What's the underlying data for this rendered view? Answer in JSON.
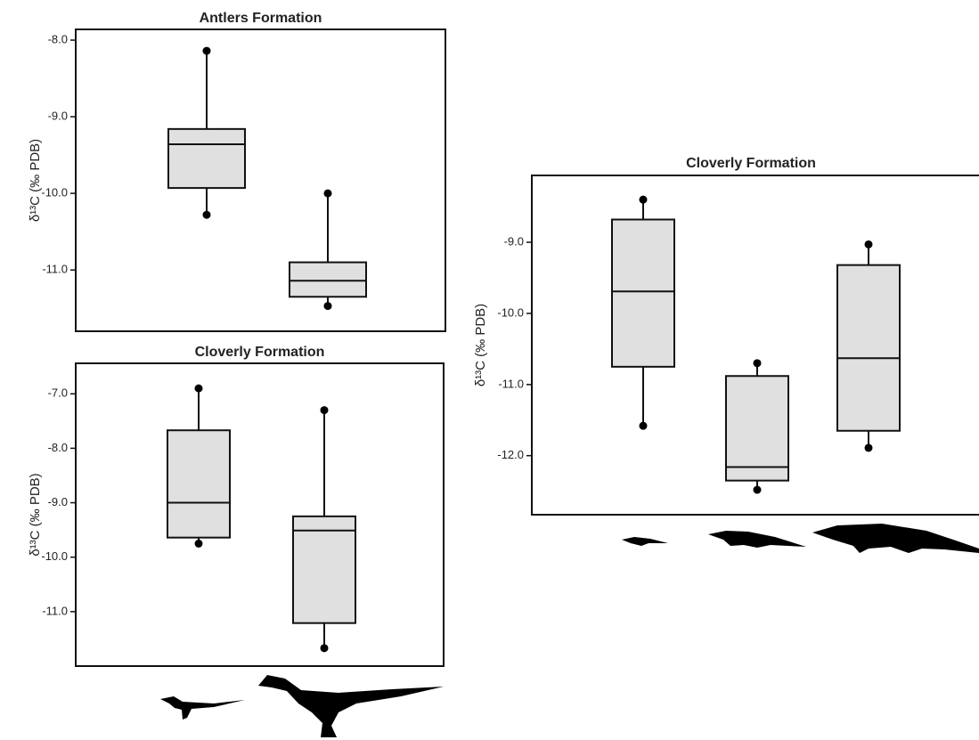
{
  "chart_data": [
    {
      "type": "box",
      "title": "Antlers Formation",
      "y_label": "δ¹³C (‰ PDB)",
      "color": "#e0e0e0",
      "ylim": [
        -11.8,
        -7.86
      ],
      "yticks": [
        {
          "value": -8,
          "label": "-8.0"
        },
        {
          "value": -9,
          "label": "-9.0"
        },
        {
          "value": -10,
          "label": "-10.0"
        },
        {
          "value": -11,
          "label": "-11.0"
        }
      ],
      "boxes": [
        {
          "min": -10.28,
          "q1": -9.93,
          "median": -9.36,
          "q3": -9.16,
          "max": -8.14
        },
        {
          "min": -11.47,
          "q1": -11.35,
          "median": -11.14,
          "q3": -10.9,
          "max": -10.0
        }
      ]
    },
    {
      "type": "box",
      "title": "Cloverly Formation",
      "y_label": "δ¹³C (‰ PDB)",
      "color": "#e0e0e0",
      "ylim": [
        -12.0,
        -6.44
      ],
      "yticks": [
        {
          "value": -7,
          "label": "-7.0"
        },
        {
          "value": -8,
          "label": "-8.0"
        },
        {
          "value": -9,
          "label": "-9.0"
        },
        {
          "value": -10,
          "label": "-10.0"
        },
        {
          "value": -11,
          "label": "-11.0"
        }
      ],
      "boxes": [
        {
          "min": -9.75,
          "q1": -9.64,
          "median": -9.0,
          "q3": -7.67,
          "max": -6.9
        },
        {
          "min": -11.67,
          "q1": -11.21,
          "median": -9.51,
          "q3": -9.25,
          "max": -7.3
        }
      ]
    },
    {
      "type": "box",
      "title": "Cloverly Formation",
      "y_label": "δ¹³C (‰ PDB)",
      "color": "#e0e0e0",
      "ylim": [
        -12.83,
        -8.06
      ],
      "yticks": [
        {
          "value": -9,
          "label": "-9.0"
        },
        {
          "value": -10,
          "label": "-10.0"
        },
        {
          "value": -11,
          "label": "-11.0"
        },
        {
          "value": -12,
          "label": "-12.0"
        }
      ],
      "boxes": [
        {
          "min": -11.58,
          "q1": -10.75,
          "median": -9.69,
          "q3": -8.68,
          "max": -8.4
        },
        {
          "min": -12.48,
          "q1": -12.35,
          "median": -12.16,
          "q3": -10.88,
          "max": -10.7
        },
        {
          "min": -11.89,
          "q1": -11.65,
          "median": -10.63,
          "q3": -9.32,
          "max": -9.03
        }
      ]
    }
  ]
}
